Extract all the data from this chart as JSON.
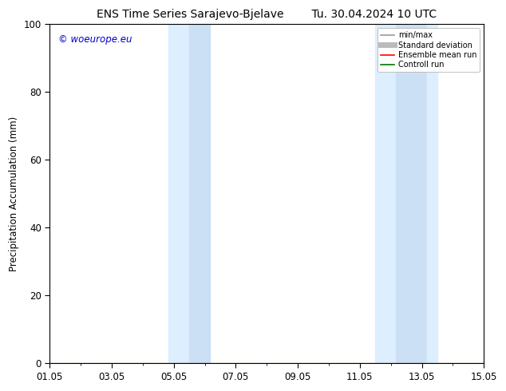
{
  "title_left": "ENS Time Series Sarajevo-Bjelave",
  "title_right": "Tu. 30.04.2024 10 UTC",
  "ylabel": "Precipitation Accumulation (mm)",
  "ylim": [
    0,
    100
  ],
  "yticks": [
    0,
    20,
    40,
    60,
    80,
    100
  ],
  "xtick_labels": [
    "01.05",
    "03.05",
    "05.05",
    "07.05",
    "09.05",
    "11.05",
    "13.05",
    "15.05"
  ],
  "xtick_positions": [
    0,
    2,
    4,
    6,
    8,
    10,
    12,
    14
  ],
  "xlim": [
    0,
    14
  ],
  "shaded_regions": [
    {
      "start": 3.83,
      "end": 4.5,
      "color": "#ddeeff"
    },
    {
      "start": 4.5,
      "end": 5.17,
      "color": "#cce0f5"
    },
    {
      "start": 10.5,
      "end": 11.17,
      "color": "#ddeeff"
    },
    {
      "start": 11.17,
      "end": 12.17,
      "color": "#cce0f5"
    },
    {
      "start": 12.17,
      "end": 12.5,
      "color": "#ddeeff"
    }
  ],
  "watermark_text": "© woeurope.eu",
  "watermark_color": "#0000cc",
  "legend_items": [
    {
      "label": "min/max",
      "color": "#999999",
      "lw": 1.2
    },
    {
      "label": "Standard deviation",
      "color": "#bbbbbb",
      "lw": 5
    },
    {
      "label": "Ensemble mean run",
      "color": "#ff0000",
      "lw": 1.2
    },
    {
      "label": "Controll run",
      "color": "#007700",
      "lw": 1.2
    }
  ],
  "background_color": "#ffffff",
  "font_size": 8.5,
  "title_font_size": 10
}
